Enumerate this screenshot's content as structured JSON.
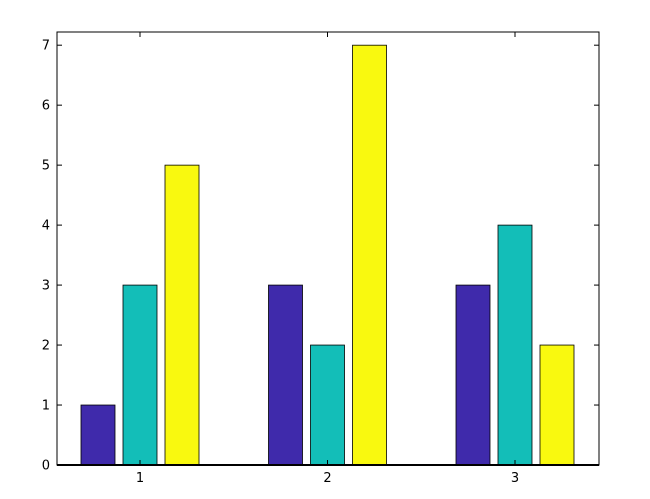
{
  "chart_data": {
    "type": "bar",
    "categories": [
      "1",
      "2",
      "3"
    ],
    "series": [
      {
        "values": [
          1,
          3,
          3
        ],
        "color": "#3f2aab"
      },
      {
        "values": [
          3,
          2,
          4
        ],
        "color": "#13beb8"
      },
      {
        "values": [
          5,
          7,
          2
        ],
        "color": "#f9f90f"
      }
    ],
    "yticks": [
      "0",
      "1",
      "2",
      "3",
      "4",
      "5",
      "6",
      "7"
    ],
    "ylim": [
      0,
      7.22
    ],
    "grid": false,
    "legend": "none"
  }
}
